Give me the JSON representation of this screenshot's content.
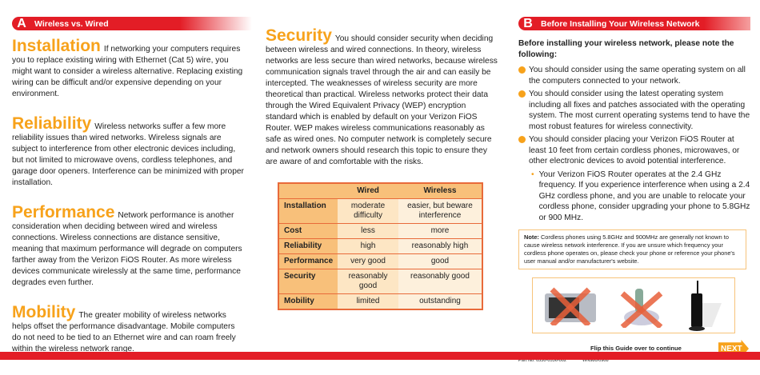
{
  "sectionA": {
    "letter": "A",
    "title": "Wireless vs. Wired"
  },
  "sectionB": {
    "letter": "B",
    "title": "Before Installing Your Wireless Network"
  },
  "left": [
    {
      "heading": "Installation",
      "text": "If networking your computers requires you to replace existing wiring with Ethernet (Cat 5) wire, you might want to consider a wireless alternative. Replacing existing wiring can be difficult and/or expensive depending on your environment."
    },
    {
      "heading": "Reliability",
      "text": "Wireless networks suffer a few more reliability issues than wired networks. Wireless signals are subject to interference from other electronic devices including, but not limited to microwave ovens, cordless telephones, and garage door openers. Interference can be minimized with proper installation."
    },
    {
      "heading": "Performance",
      "text": "Network performance is another consideration when deciding between wired and wireless connections. Wireless connections are distance sensitive, meaning that maximum performance will degrade on computers farther away from the Verizon FiOS Router. As more wireless devices communicate wirelessly at the same time, performance degrades even further."
    },
    {
      "heading": "Mobility",
      "text": "The greater mobility of wireless networks helps offset the performance disadvantage. Mobile computers do not need to be tied to an Ethernet wire and can roam freely within the wireless network range."
    }
  ],
  "security": {
    "heading": "Security",
    "text": "You should consider security when deciding between wireless and wired connections. In theory, wireless networks are less secure than wired networks, because wireless communication signals travel through the air and can easily be intercepted. The weaknesses of wireless security are more theoretical than practical. Wireless networks protect their data through the Wired Equivalent Privacy (WEP) encryption standard which is enabled by default on your Verizon FiOS Router. WEP makes wireless communications reasonably as safe as wired ones. No computer network is completely secure and network owners should research this topic to ensure they are aware of and comfortable with the risks."
  },
  "table": {
    "headers": [
      "",
      "Wired",
      "Wireless"
    ],
    "rows": [
      [
        "Installation",
        "moderate difficulty",
        "easier, but beware interference"
      ],
      [
        "Cost",
        "less",
        "more"
      ],
      [
        "Reliability",
        "high",
        "reasonably high"
      ],
      [
        "Performance",
        "very good",
        "good"
      ],
      [
        "Security",
        "reasonably good",
        "reasonably good"
      ],
      [
        "Mobility",
        "limited",
        "outstanding"
      ]
    ]
  },
  "right": {
    "intro": "Before installing your wireless network, please note the following:",
    "bullets": [
      "You should consider using the same operating system on all the computers connected to your network.",
      "You should consider using the latest operating system including all fixes and patches associated with the operating system. The most current operating systems tend to have the most robust features for wireless connectivity.",
      "You should consider placing your Verizon FiOS Router at least 10 feet from certain cordless phones, microwaves, or other electronic devices to avoid potential interference."
    ],
    "sub": "Your Verizon FiOS Router operates at the 2.4 GHz frequency. If you experience interference when using a 2.4 GHz cordless phone, and you are unable to relocate your cordless phone, consider upgrading your phone to 5.8GHz or 900 MHz.",
    "note_label": "Note:",
    "note": "Cordless phones using 5.8GHz and 900MHz are generally not known to cause wireless network interference. If you are unsure which frequency your cordless phone operates on, please check your phone or reference your phone's user manual and/or manufacturer's website."
  },
  "footer": {
    "flip": "Flip this Guide over to continue",
    "part": "Part No: 0530-0536-002",
    "code": "WN980/0908",
    "next": "NEXT"
  },
  "colors": {
    "red": "#e31d26",
    "orange": "#f7a21b"
  }
}
